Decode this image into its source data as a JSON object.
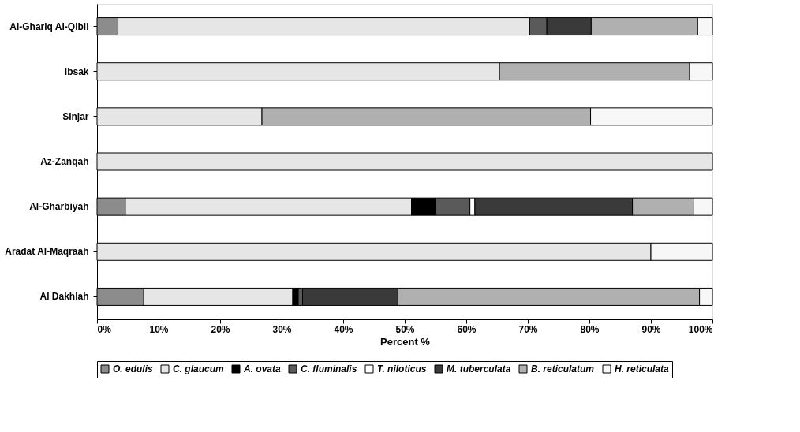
{
  "chart_data": {
    "type": "bar",
    "orientation": "horizontal",
    "stacked": true,
    "xlabel": "Percent %",
    "categories": [
      "Al-Ghariq Al-Qibli",
      "Ibsak",
      "Sinjar",
      "Az-Zanqah",
      "Al-Gharbiyah",
      "Aradat Al-Maqraah",
      "Al Dakhlah"
    ],
    "series": [
      {
        "name": "O. edulis",
        "color": "#8c8c8c",
        "values": [
          3.4,
          null,
          null,
          null,
          4.6,
          null,
          7.6
        ]
      },
      {
        "name": "C. glaucum",
        "color": "#e6e6e6",
        "values": [
          66.9,
          65.4,
          26.8,
          100,
          46.5,
          90,
          24.2
        ]
      },
      {
        "name": "A. ovata",
        "color": "#000000",
        "values": [
          null,
          null,
          null,
          null,
          3.9,
          null,
          0.9
        ]
      },
      {
        "name": "C. fluminalis",
        "color": "#5a5a5a",
        "values": [
          2.8,
          null,
          null,
          null,
          5.6,
          null,
          0.7
        ]
      },
      {
        "name": "T. niloticus",
        "color": "#ffffff",
        "values": [
          null,
          null,
          null,
          null,
          0.8,
          null,
          null
        ]
      },
      {
        "name": "M. tuberculata",
        "color": "#3a3a3a",
        "values": [
          7.2,
          null,
          null,
          null,
          25.6,
          null,
          15.5
        ]
      },
      {
        "name": "B. reticulatum",
        "color": "#b0b0b0",
        "values": [
          17.3,
          30.9,
          53.4,
          null,
          9.9,
          null,
          49.0
        ]
      },
      {
        "name": "H. reticulata",
        "color": "#f7f7f7",
        "values": [
          2.4,
          3.7,
          19.8,
          null,
          3.1,
          10,
          2.1
        ]
      }
    ],
    "xlim": [
      0,
      100
    ],
    "xticks": [
      {
        "value": 0,
        "label": "0%"
      },
      {
        "value": 10,
        "label": "10%"
      },
      {
        "value": 20,
        "label": "20%"
      },
      {
        "value": 30,
        "label": "30%"
      },
      {
        "value": 40,
        "label": "40%"
      },
      {
        "value": 50,
        "label": "50%"
      },
      {
        "value": 60,
        "label": "60%"
      },
      {
        "value": 70,
        "label": "70%"
      },
      {
        "value": 80,
        "label": "80%"
      },
      {
        "value": 90,
        "label": "90%"
      },
      {
        "value": 100,
        "label": "100%"
      }
    ],
    "grid": false,
    "legend": "bottom"
  }
}
